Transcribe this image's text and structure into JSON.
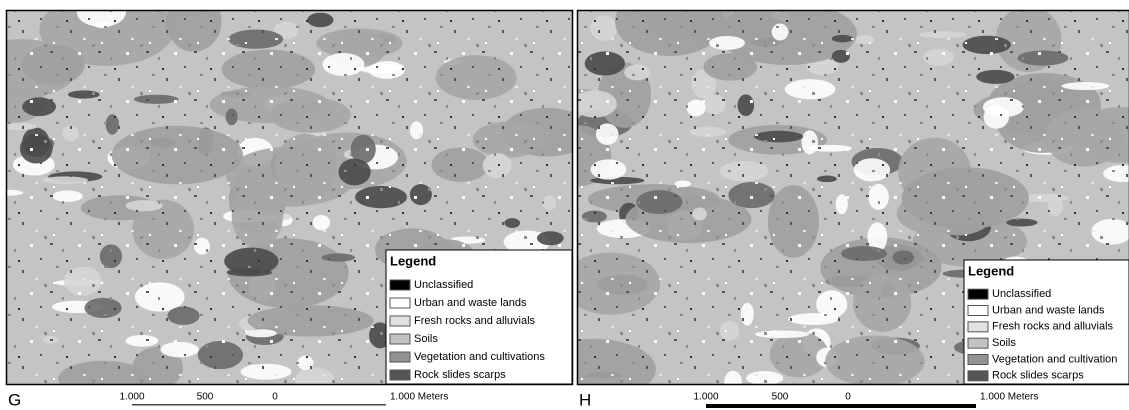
{
  "panels": [
    {
      "label": "G",
      "legend": {
        "title": "Legend",
        "items": [
          "Unclassified",
          "Urban and waste lands",
          "Fresh rocks and alluvials",
          "Soils",
          "Vegetation and cultivations",
          "Rock slides scarps"
        ]
      },
      "scale_bar": {
        "labels": [
          "1.000",
          "500",
          "0",
          "1.000 Meters"
        ]
      }
    },
    {
      "label": "H",
      "legend": {
        "title": "Legend",
        "items": [
          "Unclassified",
          "Urban and waste lands",
          "Fresh rocks and alluvials",
          "Soils",
          "Vegetation and cultivation",
          "Rock slides scarps"
        ]
      },
      "scale_bar": {
        "labels": [
          "1.000",
          "500",
          "0",
          "1.000 Meters"
        ]
      }
    }
  ]
}
